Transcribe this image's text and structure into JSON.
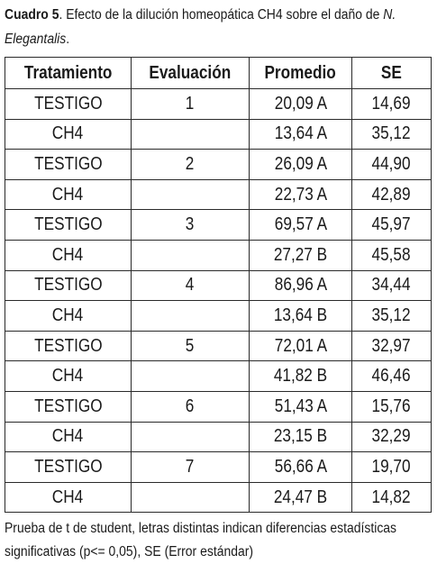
{
  "caption": {
    "lead": "Cuadro 5",
    "text": ". Efecto de la dilución homeopática CH4 sobre el daño de ",
    "species_line1": "N.",
    "species_line2": "Elegantalis",
    "end": "."
  },
  "table": {
    "headers": [
      "Tratamiento",
      "Evaluación",
      "Promedio",
      "SE"
    ],
    "rows": [
      {
        "tratamiento": "TESTIGO",
        "evaluacion": "1",
        "promedio": "20,09 A",
        "se": "14,69"
      },
      {
        "tratamiento": "CH4",
        "evaluacion": "",
        "promedio": "13,64 A",
        "se": "35,12"
      },
      {
        "tratamiento": "TESTIGO",
        "evaluacion": "2",
        "promedio": "26,09 A",
        "se": "44,90"
      },
      {
        "tratamiento": "CH4",
        "evaluacion": "",
        "promedio": "22,73 A",
        "se": "42,89"
      },
      {
        "tratamiento": "TESTIGO",
        "evaluacion": "3",
        "promedio": "69,57 A",
        "se": "45,97"
      },
      {
        "tratamiento": "CH4",
        "evaluacion": "",
        "promedio": "27,27 B",
        "se": "45,58"
      },
      {
        "tratamiento": "TESTIGO",
        "evaluacion": "4",
        "promedio": "86,96 A",
        "se": "34,44"
      },
      {
        "tratamiento": "CH4",
        "evaluacion": "",
        "promedio": "13,64 B",
        "se": "35,12"
      },
      {
        "tratamiento": "TESTIGO",
        "evaluacion": "5",
        "promedio": "72,01 A",
        "se": "32,97"
      },
      {
        "tratamiento": "CH4",
        "evaluacion": "",
        "promedio": "41,82 B",
        "se": "46,46"
      },
      {
        "tratamiento": "TESTIGO",
        "evaluacion": "6",
        "promedio": "51,43 A",
        "se": "15,76"
      },
      {
        "tratamiento": "CH4",
        "evaluacion": "",
        "promedio": "23,15 B",
        "se": "32,29"
      },
      {
        "tratamiento": "TESTIGO",
        "evaluacion": "7",
        "promedio": "56,66 A",
        "se": "19,70"
      },
      {
        "tratamiento": "CH4",
        "evaluacion": "",
        "promedio": "24,47 B",
        "se": "14,82"
      }
    ]
  },
  "note": {
    "line1": "Prueba de t de student, letras distintas indican diferencias estadísticas",
    "line2": "significativas (p<= 0,05), SE (Error estándar)"
  }
}
